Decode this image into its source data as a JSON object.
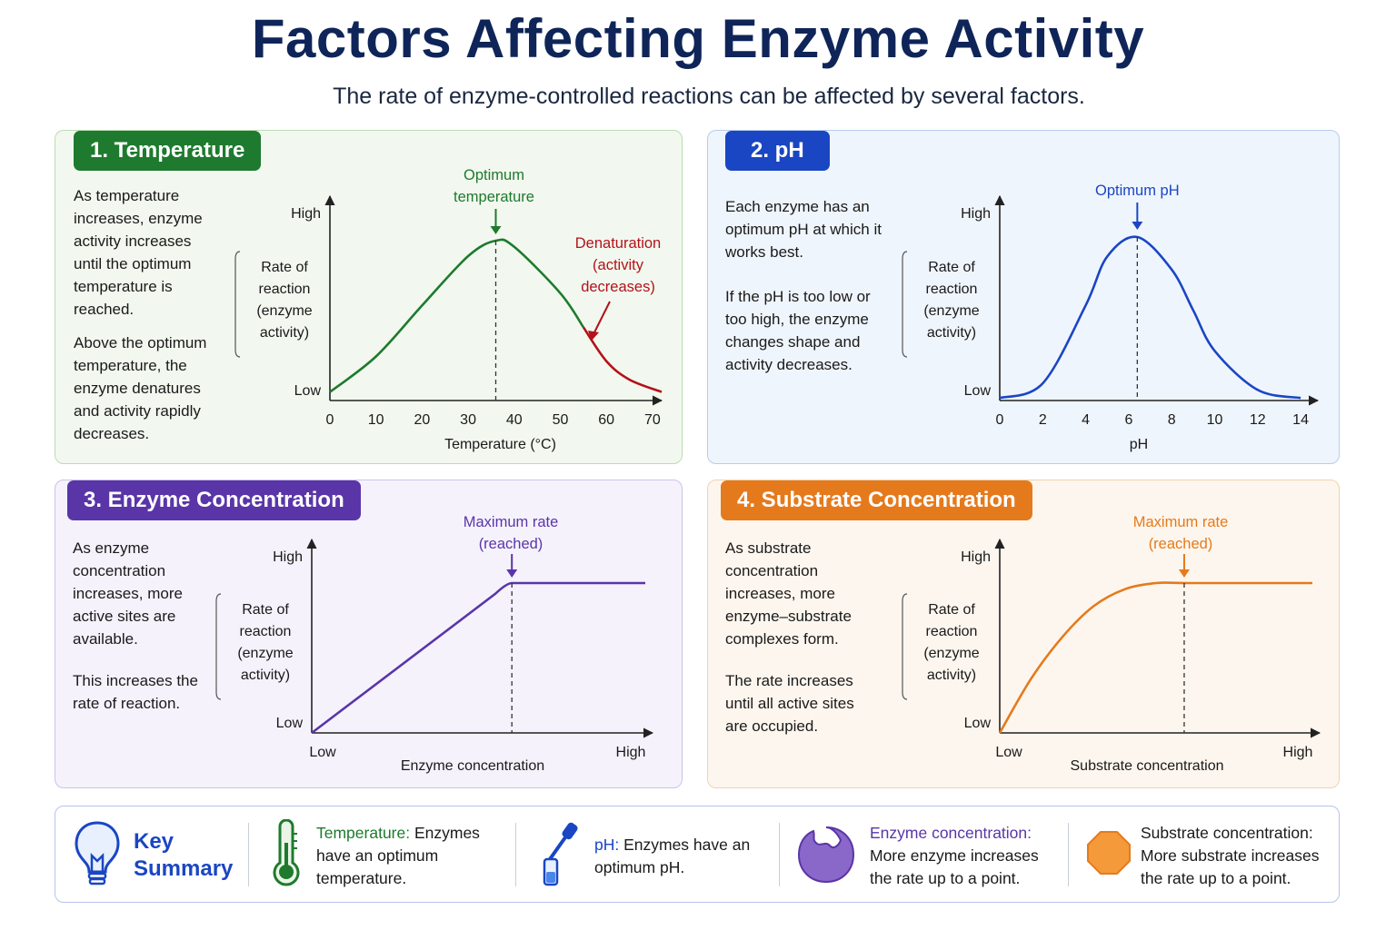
{
  "header": {
    "title": "Factors Affecting Enzyme Activity",
    "subtitle": "The rate of enzyme-controlled reactions can be affected by several factors."
  },
  "colors": {
    "temperature": "#1e7a2e",
    "denaturation": "#b3121a",
    "ph": "#1a46c4",
    "enzyme": "#5a35a8",
    "substrate": "#e57a1c"
  },
  "panels": {
    "temperature": {
      "badge": "1. Temperature",
      "paragraphs": [
        "As temperature increases, enzyme activity increases until the optimum temperature is reached.",
        "Above the optimum temperature, the enzyme denatures and activity rapidly decreases."
      ]
    },
    "ph": {
      "badge": "2. pH",
      "paragraphs": [
        "Each enzyme has an optimum pH at which it works best.",
        "If the pH is too low or too high, the enzyme changes shape and activity decreases."
      ]
    },
    "enzyme": {
      "badge": "3. Enzyme Concentration",
      "paragraphs": [
        "As enzyme concentration increases, more active sites are available.",
        "This increases the rate of reaction."
      ]
    },
    "substrate": {
      "badge": "4. Substrate Concentration",
      "paragraphs": [
        "As substrate concentration increases, more enzyme–substrate complexes form.",
        "The rate increases until all active sites are occupied."
      ]
    }
  },
  "chart_data": [
    {
      "type": "line",
      "xlabel": "Temperature (°C)",
      "ylabel": "Rate of reaction (enzyme activity)",
      "y_tick_labels": [
        "Low",
        "High"
      ],
      "x_ticks": [
        0,
        10,
        20,
        30,
        40,
        50,
        60,
        70
      ],
      "xlim": [
        0,
        72
      ],
      "x": [
        0,
        10,
        20,
        30,
        36,
        40,
        50,
        55,
        60,
        65,
        72
      ],
      "y": [
        0.02,
        0.25,
        0.58,
        0.9,
        1.0,
        0.96,
        0.66,
        0.44,
        0.22,
        0.1,
        0.02
      ],
      "optimum_x": 36,
      "annotations": [
        "Optimum temperature",
        "Denaturation (activity decreases)"
      ]
    },
    {
      "type": "line",
      "xlabel": "pH",
      "ylabel": "Rate of reaction (enzyme activity)",
      "y_tick_labels": [
        "Low",
        "High"
      ],
      "x_ticks": [
        0,
        2,
        4,
        6,
        8,
        10,
        12,
        14
      ],
      "xlim": [
        0,
        14.8
      ],
      "x": [
        0,
        2,
        4,
        5,
        6.4,
        8,
        9,
        10,
        12,
        14
      ],
      "y": [
        0.01,
        0.1,
        0.58,
        0.88,
        1.0,
        0.8,
        0.55,
        0.3,
        0.06,
        0.01
      ],
      "optimum_x": 6.4,
      "annotations": [
        "Optimum pH"
      ]
    },
    {
      "type": "line",
      "xlabel": "Enzyme concentration",
      "ylabel": "Rate of reaction (enzyme activity)",
      "y_tick_labels": [
        "Low",
        "High"
      ],
      "x_tick_labels": [
        "Low",
        "High"
      ],
      "x": [
        0,
        0.55,
        0.6,
        1.0
      ],
      "y": [
        0,
        0.9,
        0.97,
        0.97
      ],
      "max_rate_x": 0.6,
      "annotations": [
        "Maximum rate (reached)"
      ]
    },
    {
      "type": "line",
      "xlabel": "Substrate concentration",
      "ylabel": "Rate of reaction (enzyme activity)",
      "y_tick_labels": [
        "Low",
        "High"
      ],
      "x_tick_labels": [
        "Low",
        "High"
      ],
      "x": [
        0,
        0.1,
        0.2,
        0.3,
        0.4,
        0.5,
        0.6,
        1.0
      ],
      "y": [
        0,
        0.35,
        0.62,
        0.82,
        0.93,
        0.97,
        0.97,
        0.97
      ],
      "max_rate_x": 0.59,
      "annotations": [
        "Maximum rate (reached)"
      ]
    }
  ],
  "summary": {
    "heading_1": "Key",
    "heading_2": "Summary",
    "items": [
      {
        "icon": "thermometer-icon",
        "label": "Temperature:",
        "text": " Enzymes have an optimum temperature."
      },
      {
        "icon": "dropper-icon",
        "label": "pH:",
        "text": " Enzymes have an optimum pH."
      },
      {
        "icon": "enzyme-icon",
        "label": "Enzyme concentration:",
        "text": "More enzyme increases the rate up to a point."
      },
      {
        "icon": "substrate-icon",
        "label": "Substrate concentration:",
        "text": "More substrate increases the rate up to a point."
      }
    ]
  }
}
